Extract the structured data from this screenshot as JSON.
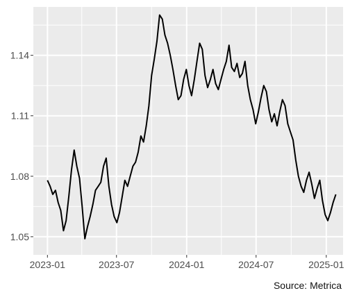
{
  "chart_data": {
    "type": "line",
    "title": "",
    "xlabel": "",
    "ylabel": "",
    "caption": "Source: Metrica",
    "grid": true,
    "legend": "none",
    "xlim": [
      "2022-11-25",
      "2025-02-14"
    ],
    "ylim": [
      1.041,
      1.164
    ],
    "x_ticks": [
      {
        "date": "2023-01-01",
        "label": "2023-01"
      },
      {
        "date": "2023-07-01",
        "label": "2023-07"
      },
      {
        "date": "2024-01-01",
        "label": "2024-01"
      },
      {
        "date": "2024-07-01",
        "label": "2024-07"
      },
      {
        "date": "2025-01-01",
        "label": "2025-01"
      }
    ],
    "x_minor_ticks": [
      "2023-04-01",
      "2023-10-01",
      "2024-04-01",
      "2024-10-01"
    ],
    "y_ticks": [
      {
        "value": 1.05,
        "label": "1.05"
      },
      {
        "value": 1.08,
        "label": "1.08"
      },
      {
        "value": 1.11,
        "label": "1.11"
      },
      {
        "value": 1.14,
        "label": "1.14"
      }
    ],
    "y_minor_ticks": [
      1.065,
      1.095,
      1.125,
      1.155
    ],
    "colors": {
      "panel": "#ebebeb",
      "grid": "#ffffff",
      "line": "#000000"
    },
    "series": [
      {
        "x": [
          "2023-01-01",
          "2023-01-08",
          "2023-01-15",
          "2023-01-22",
          "2023-01-29",
          "2023-02-05",
          "2023-02-12",
          "2023-02-19",
          "2023-02-26",
          "2023-03-05",
          "2023-03-12",
          "2023-03-19",
          "2023-03-26",
          "2023-04-02",
          "2023-04-09",
          "2023-04-16",
          "2023-04-23",
          "2023-04-30",
          "2023-05-07",
          "2023-05-14",
          "2023-05-21",
          "2023-05-28",
          "2023-06-04",
          "2023-06-11",
          "2023-06-18",
          "2023-06-25",
          "2023-07-02",
          "2023-07-09",
          "2023-07-16",
          "2023-07-23",
          "2023-07-30",
          "2023-08-06",
          "2023-08-13",
          "2023-08-20",
          "2023-08-27",
          "2023-09-03",
          "2023-09-10",
          "2023-09-17",
          "2023-09-24",
          "2023-10-01",
          "2023-10-08",
          "2023-10-15",
          "2023-10-22",
          "2023-10-29",
          "2023-11-05",
          "2023-11-12",
          "2023-11-19",
          "2023-11-26",
          "2023-12-03",
          "2023-12-10",
          "2023-12-17",
          "2023-12-24",
          "2023-12-31",
          "2024-01-07",
          "2024-01-14",
          "2024-01-21",
          "2024-01-28",
          "2024-02-04",
          "2024-02-11",
          "2024-02-18",
          "2024-02-25",
          "2024-03-03",
          "2024-03-10",
          "2024-03-17",
          "2024-03-24",
          "2024-03-31",
          "2024-04-07",
          "2024-04-14",
          "2024-04-21",
          "2024-04-28",
          "2024-05-05",
          "2024-05-12",
          "2024-05-19",
          "2024-05-26",
          "2024-06-02",
          "2024-06-09",
          "2024-06-16",
          "2024-06-23",
          "2024-06-30",
          "2024-07-07",
          "2024-07-14",
          "2024-07-21",
          "2024-07-28",
          "2024-08-04",
          "2024-08-11",
          "2024-08-18",
          "2024-08-25",
          "2024-09-01",
          "2024-09-08",
          "2024-09-15",
          "2024-09-22",
          "2024-09-29",
          "2024-10-06",
          "2024-10-13",
          "2024-10-20",
          "2024-10-27",
          "2024-11-03",
          "2024-11-10",
          "2024-11-17",
          "2024-11-24",
          "2024-12-01",
          "2024-12-08",
          "2024-12-15",
          "2024-12-22",
          "2024-12-29",
          "2025-01-05",
          "2025-01-12",
          "2025-01-19",
          "2025-01-26"
        ],
        "values": [
          1.078,
          1.075,
          1.071,
          1.073,
          1.067,
          1.063,
          1.053,
          1.058,
          1.07,
          1.083,
          1.093,
          1.085,
          1.079,
          1.065,
          1.049,
          1.055,
          1.06,
          1.066,
          1.073,
          1.075,
          1.077,
          1.085,
          1.089,
          1.075,
          1.066,
          1.06,
          1.057,
          1.062,
          1.07,
          1.078,
          1.075,
          1.08,
          1.085,
          1.087,
          1.092,
          1.1,
          1.097,
          1.105,
          1.115,
          1.13,
          1.138,
          1.147,
          1.16,
          1.158,
          1.15,
          1.146,
          1.14,
          1.133,
          1.125,
          1.118,
          1.12,
          1.128,
          1.133,
          1.125,
          1.12,
          1.128,
          1.137,
          1.146,
          1.143,
          1.13,
          1.124,
          1.128,
          1.133,
          1.126,
          1.123,
          1.128,
          1.133,
          1.137,
          1.145,
          1.134,
          1.132,
          1.136,
          1.129,
          1.131,
          1.137,
          1.125,
          1.118,
          1.113,
          1.106,
          1.112,
          1.119,
          1.125,
          1.122,
          1.113,
          1.107,
          1.111,
          1.105,
          1.112,
          1.118,
          1.115,
          1.106,
          1.102,
          1.098,
          1.088,
          1.08,
          1.075,
          1.072,
          1.078,
          1.082,
          1.076,
          1.069,
          1.074,
          1.078,
          1.068,
          1.061,
          1.058,
          1.062,
          1.067,
          1.071
        ]
      }
    ]
  }
}
